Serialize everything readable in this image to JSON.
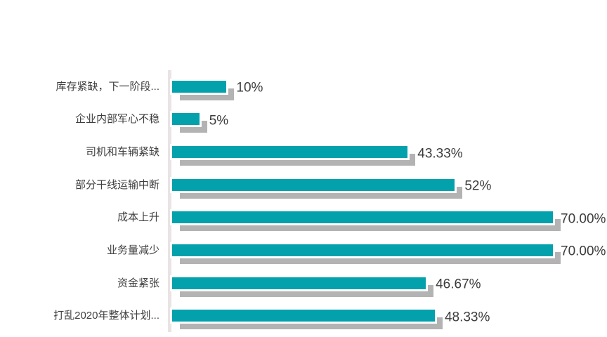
{
  "chart_data": {
    "type": "bar",
    "orientation": "horizontal",
    "title": "",
    "xlabel": "",
    "ylabel": "",
    "categories": [
      "库存紧缺，下一阶段...",
      "企业内部军心不稳",
      "司机和车辆紧缺",
      "部分干线运输中断",
      "成本上升",
      "业务量减少",
      "资金紧张",
      "打乱2020年整体计划..."
    ],
    "values": [
      10,
      5,
      43.33,
      52,
      70,
      70,
      46.67,
      48.33
    ],
    "value_labels": [
      "10%",
      "5%",
      "43.33%",
      "52%",
      "70.00%",
      "70.00%",
      "46.67%",
      "48.33%"
    ],
    "xlim": [
      0,
      80
    ],
    "grid": false,
    "legend": false,
    "colors": {
      "bar": "#03A1AC",
      "bar_shadow": "#B3B3B3",
      "axis_line": "#E9E3E4",
      "category_text": "#3F3F3F",
      "value_text": "#3C3C3C",
      "background": "#FFFFFF"
    }
  }
}
